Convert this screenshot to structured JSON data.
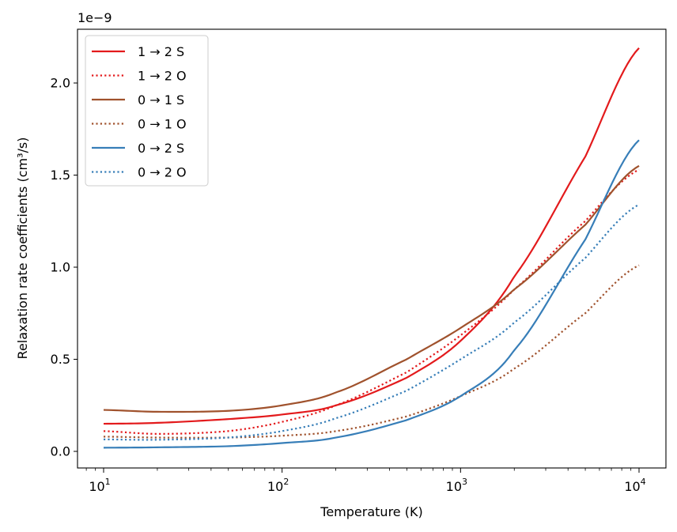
{
  "chart_data": {
    "type": "line",
    "title": "",
    "xlabel": "Temperature (K)",
    "ylabel": "Relaxation rate coefficients (cm³/s)",
    "xscale": "log",
    "x_range": [
      10,
      10000
    ],
    "y_scale_label": "1e−9",
    "ylim": [
      -0.08,
      2.3
    ],
    "x_ticks": [
      {
        "value": 10,
        "base": "10",
        "exp": "1"
      },
      {
        "value": 100,
        "base": "10",
        "exp": "2"
      },
      {
        "value": 1000,
        "base": "10",
        "exp": "3"
      },
      {
        "value": 10000,
        "base": "10",
        "exp": "4"
      }
    ],
    "y_ticks": [
      {
        "value": 0.0,
        "label": "0.0"
      },
      {
        "value": 0.5,
        "label": "0.5"
      },
      {
        "value": 1.0,
        "label": "1.0"
      },
      {
        "value": 1.5,
        "label": "1.5"
      },
      {
        "value": 2.0,
        "label": "2.0"
      }
    ],
    "legend_position": "top-left",
    "series": [
      {
        "name": "1 → 2 S",
        "color": "#e31a1c",
        "style": "solid",
        "x": [
          10,
          20,
          50,
          100,
          200,
          500,
          1000,
          2000,
          5000,
          10000
        ],
        "values": [
          0.15,
          0.155,
          0.175,
          0.2,
          0.25,
          0.4,
          0.6,
          0.95,
          1.6,
          2.19
        ]
      },
      {
        "name": "1 → 2 O",
        "color": "#e31a1c",
        "style": "dotted",
        "x": [
          10,
          20,
          50,
          100,
          200,
          500,
          1000,
          2000,
          5000,
          10000
        ],
        "values": [
          0.11,
          0.095,
          0.11,
          0.16,
          0.25,
          0.43,
          0.63,
          0.88,
          1.25,
          1.53
        ]
      },
      {
        "name": "0 → 1 S",
        "color": "#a0522d",
        "style": "solid",
        "x": [
          10,
          20,
          50,
          100,
          200,
          500,
          1000,
          2000,
          5000,
          10000
        ],
        "values": [
          0.225,
          0.215,
          0.22,
          0.25,
          0.32,
          0.5,
          0.67,
          0.88,
          1.23,
          1.55
        ]
      },
      {
        "name": "0 → 1 O",
        "color": "#a0522d",
        "style": "dotted",
        "x": [
          10,
          20,
          50,
          100,
          200,
          500,
          1000,
          2000,
          5000,
          10000
        ],
        "values": [
          0.08,
          0.075,
          0.075,
          0.085,
          0.11,
          0.19,
          0.3,
          0.45,
          0.75,
          1.01
        ]
      },
      {
        "name": "0 → 2 S",
        "color": "#377eb8",
        "style": "solid",
        "x": [
          10,
          20,
          50,
          100,
          200,
          500,
          1000,
          2000,
          5000,
          10000
        ],
        "values": [
          0.02,
          0.022,
          0.028,
          0.045,
          0.075,
          0.17,
          0.3,
          0.55,
          1.15,
          1.69
        ]
      },
      {
        "name": "0 → 2 O",
        "color": "#377eb8",
        "style": "dotted",
        "x": [
          10,
          20,
          50,
          100,
          200,
          500,
          1000,
          2000,
          5000,
          10000
        ],
        "values": [
          0.065,
          0.063,
          0.075,
          0.11,
          0.18,
          0.33,
          0.5,
          0.7,
          1.05,
          1.34
        ]
      }
    ]
  }
}
